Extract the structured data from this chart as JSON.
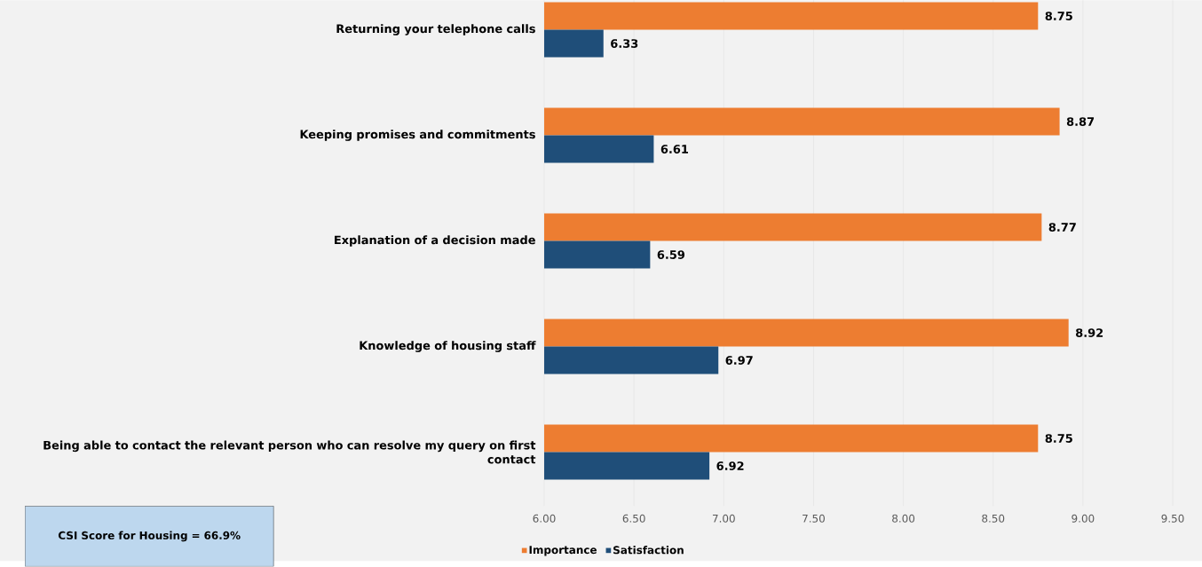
{
  "chart_data": {
    "type": "bar",
    "orientation": "horizontal",
    "categories": [
      "Returning your telephone calls",
      "Keeping promises and commitments",
      "Explanation of a decision made",
      "Knowledge of housing staff",
      "Being able to contact the relevant person who can resolve my query on first contact"
    ],
    "series": [
      {
        "name": "Importance",
        "color": "#ed7d31",
        "values": [
          8.75,
          8.87,
          8.77,
          8.92,
          8.75
        ]
      },
      {
        "name": "Satisfaction",
        "color": "#1f4e79",
        "values": [
          6.33,
          6.61,
          6.59,
          6.97,
          6.92
        ]
      }
    ],
    "xlim": [
      6,
      9.5
    ],
    "xticks": [
      {
        "value": 6,
        "label": "6.00"
      },
      {
        "value": 6.5,
        "label": "6.50"
      },
      {
        "value": 7,
        "label": "7.00"
      },
      {
        "value": 7.5,
        "label": "7.50"
      },
      {
        "value": 8,
        "label": "8.00"
      },
      {
        "value": 8.5,
        "label": "8.50"
      },
      {
        "value": 9,
        "label": "9.00"
      },
      {
        "value": 9.5,
        "label": "9.50"
      }
    ],
    "grid": "x",
    "legend": "bottom",
    "data_labels": true,
    "annotations": [
      "CSI Score for Housing = 66.9%"
    ]
  }
}
